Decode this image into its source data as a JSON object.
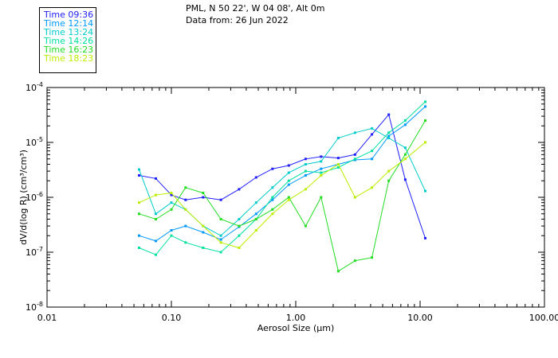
{
  "header": {
    "station": "PML, N 50 22', W 04 08', Alt 0m",
    "date": "Data from: 26 Jun 2022"
  },
  "chart_data": {
    "type": "line",
    "xscale": "log",
    "yscale": "log",
    "xlabel": "Aerosol Size (μm)",
    "ylabel": "dV/d(log R) (cm³/cm³)",
    "xlim": [
      0.01,
      100
    ],
    "ylim": [
      1e-08,
      0.0001
    ],
    "x_tick_labels": [
      "0.01",
      "0.10",
      "1.00",
      "10.00",
      "100.00"
    ],
    "y_tick_labels": [
      {
        "base": "10",
        "exp": "-8"
      },
      {
        "base": "10",
        "exp": "-7"
      },
      {
        "base": "10",
        "exp": "-6"
      },
      {
        "base": "10",
        "exp": "-5"
      },
      {
        "base": "10",
        "exp": "-4"
      }
    ],
    "x": [
      0.055,
      0.075,
      0.1,
      0.13,
      0.18,
      0.25,
      0.35,
      0.48,
      0.65,
      0.88,
      1.2,
      1.6,
      2.2,
      3.0,
      4.1,
      5.6,
      7.6,
      11.0
    ],
    "legend_position": "top-left",
    "series": [
      {
        "name": "Time 09:36",
        "color": "#2020ff",
        "values": [
          2.5e-06,
          2.2e-06,
          1.1e-06,
          9e-07,
          1e-06,
          9e-07,
          1.4e-06,
          2.3e-06,
          3.3e-06,
          3.8e-06,
          5e-06,
          5.5e-06,
          5.2e-06,
          6e-06,
          1.4e-05,
          3.2e-05,
          2.1e-06,
          1.8e-07
        ]
      },
      {
        "name": "Time 12:14",
        "color": "#0099ff",
        "values": [
          2e-07,
          1.6e-07,
          2.5e-07,
          3e-07,
          2.3e-07,
          1.7e-07,
          2.9e-07,
          5e-07,
          9e-07,
          1.7e-06,
          2.5e-06,
          3.3e-06,
          4e-06,
          4.8e-06,
          5e-06,
          1.3e-05,
          2.1e-05,
          4.5e-05
        ]
      },
      {
        "name": "Time 13:24",
        "color": "#00cccc",
        "values": [
          3.2e-06,
          5e-07,
          8e-07,
          6e-07,
          3e-07,
          2e-07,
          4e-07,
          8e-07,
          1.5e-06,
          2.8e-06,
          4e-06,
          4.5e-06,
          1.2e-05,
          1.5e-05,
          1.8e-05,
          1.2e-05,
          8e-06,
          1.3e-06
        ]
      },
      {
        "name": "Time 14:26",
        "color": "#00e0a0",
        "values": [
          1.2e-07,
          9e-08,
          2e-07,
          1.5e-07,
          1.2e-07,
          1e-07,
          2e-07,
          4e-07,
          1e-06,
          2e-06,
          3e-06,
          2.8e-06,
          3.5e-06,
          5e-06,
          7e-06,
          1.5e-05,
          2.5e-05,
          5.5e-05
        ]
      },
      {
        "name": "Time 16:23",
        "color": "#22dd22",
        "values": [
          5e-07,
          4e-07,
          6e-07,
          1.5e-06,
          1.2e-06,
          4e-07,
          3e-07,
          4e-07,
          6e-07,
          1e-06,
          3e-07,
          1e-06,
          4.5e-08,
          7e-08,
          8e-08,
          2e-06,
          6e-06,
          2.5e-05
        ]
      },
      {
        "name": "Time 18:23",
        "color": "#bbee00",
        "values": [
          8e-07,
          1.1e-06,
          1.2e-06,
          6e-07,
          3e-07,
          1.5e-07,
          1.2e-07,
          2.5e-07,
          5e-07,
          9e-07,
          1.4e-06,
          2.5e-06,
          4e-06,
          1e-06,
          1.5e-06,
          3e-06,
          5e-06,
          1e-05
        ]
      }
    ]
  }
}
